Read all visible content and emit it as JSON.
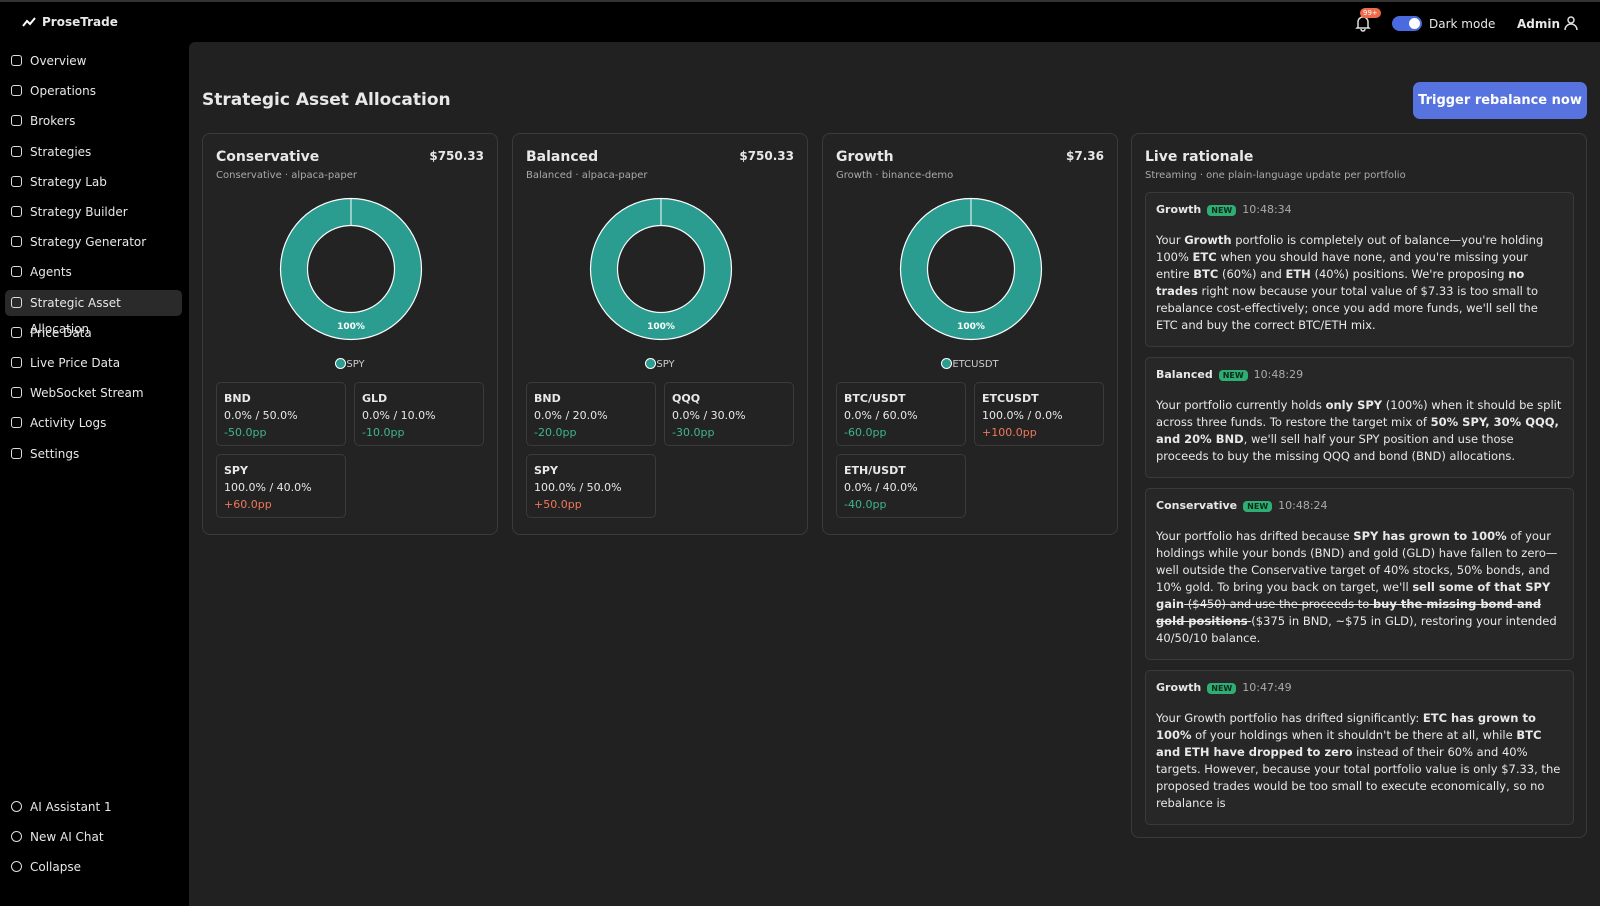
{
  "header": {
    "brand": "ProseTrade",
    "notification_count": "99+",
    "theme_toggle": "Dark mode",
    "user": "Admin"
  },
  "sidebar": {
    "items": [
      "Overview",
      "Operations",
      "Brokers",
      "Strategies",
      "Strategy Lab",
      "Strategy Builder",
      "Strategy Generator",
      "Agents",
      "Strategic Asset Allocation",
      "Price Data",
      "Live Price Data",
      "WebSocket Stream",
      "Activity Logs",
      "Settings"
    ],
    "footer": [
      "AI Assistant 1",
      "New AI Chat",
      "Collapse"
    ]
  },
  "page": {
    "title": "Strategic Asset Allocation",
    "action": "Trigger rebalance now"
  },
  "portfolios": [
    {
      "name": "Conservative",
      "value": "$750.33",
      "subtitle": "Conservative · alpaca-paper",
      "slices": [
        {
          "name": "SPY",
          "value": 100,
          "label": "100%",
          "color": "#2a9d90"
        }
      ],
      "holdings": [
        {
          "symbol": "BND",
          "weights": "0.0% / 50.0%",
          "drift": "-50.0pp"
        },
        {
          "symbol": "GLD",
          "weights": "0.0% / 10.0%",
          "drift": "-10.0pp"
        },
        {
          "symbol": "SPY",
          "weights": "100.0% / 40.0%",
          "drift": "+60.0pp"
        }
      ]
    },
    {
      "name": "Balanced",
      "value": "$750.33",
      "subtitle": "Balanced · alpaca-paper",
      "slices": [
        {
          "name": "SPY",
          "value": 100,
          "label": "100%",
          "color": "#2a9d90"
        }
      ],
      "holdings": [
        {
          "symbol": "BND",
          "weights": "0.0% / 20.0%",
          "drift": "-20.0pp"
        },
        {
          "symbol": "QQQ",
          "weights": "0.0% / 30.0%",
          "drift": "-30.0pp"
        },
        {
          "symbol": "SPY",
          "weights": "100.0% / 50.0%",
          "drift": "+50.0pp"
        }
      ]
    },
    {
      "name": "Growth",
      "value": "$7.36",
      "subtitle": "Growth · binance-demo",
      "slices": [
        {
          "name": "ETCUSDT",
          "value": 100,
          "label": "100%",
          "color": "#2a9d90"
        }
      ],
      "holdings": [
        {
          "symbol": "BTC/USDT",
          "weights": "0.0% / 60.0%",
          "drift": "-60.0pp"
        },
        {
          "symbol": "ETCUSDT",
          "weights": "100.0% / 0.0%",
          "drift": "+100.0pp"
        },
        {
          "symbol": "ETH/USDT",
          "weights": "0.0% / 40.0%",
          "drift": "-40.0pp"
        }
      ]
    }
  ],
  "rationale": {
    "title": "Live rationale",
    "subtitle": "Streaming · one plain-language update per portfolio",
    "entries": [
      {
        "portfolio": "Growth",
        "badge": "NEW",
        "time": "10:48:34",
        "segments": [
          {
            "text": "Your "
          },
          {
            "text": "Growth",
            "style": "bold"
          },
          {
            "text": " portfolio is completely out of balance—you're holding 100% "
          },
          {
            "text": "ETC",
            "style": "bold"
          },
          {
            "text": " when you should have none, and you're missing your entire "
          },
          {
            "text": "BTC",
            "style": "bold"
          },
          {
            "text": " (60%) and "
          },
          {
            "text": "ETH",
            "style": "bold"
          },
          {
            "text": " (40%) positions. We're proposing "
          },
          {
            "text": "no trades",
            "style": "bold"
          },
          {
            "text": " right now because your total value of $7.33 is too small to rebalance cost-effectively; once you add more funds, we'll sell the ETC and buy the correct BTC/ETH mix."
          }
        ]
      },
      {
        "portfolio": "Balanced",
        "badge": "NEW",
        "time": "10:48:29",
        "segments": [
          {
            "text": "Your portfolio currently holds "
          },
          {
            "text": "only SPY",
            "style": "bold"
          },
          {
            "text": " (100%) when it should be split across three funds. To restore the target mix of "
          },
          {
            "text": "50% SPY, 30% QQQ, and 20% BND",
            "style": "bold"
          },
          {
            "text": ", we'll sell half your SPY position and use those proceeds to buy the missing QQQ and bond (BND) allocations."
          }
        ]
      },
      {
        "portfolio": "Conservative",
        "badge": "NEW",
        "time": "10:48:24",
        "segments": [
          {
            "text": "Your portfolio has drifted because "
          },
          {
            "text": "SPY has grown to 100%",
            "style": "bold"
          },
          {
            "text": " of your holdings while your bonds (BND) and gold (GLD) have fallen to zero—well outside the Conservative target of 40% stocks, 50% bonds, and 10% gold. To bring you back on target, we'll "
          },
          {
            "text": "sell some of that SPY gain",
            "style": "bold"
          },
          {
            "text": " ($450) and use the proceeds to ",
            "style": "strike"
          },
          {
            "text": "buy the missing bond and gold positions",
            "style": "bold-strike"
          },
          {
            "text": " ",
            "style": "strike"
          },
          {
            "text": "($375 in BND, ~$75 in GLD), restoring your intended 40/50/10 balance."
          }
        ]
      },
      {
        "portfolio": "Growth",
        "badge": "NEW",
        "time": "10:47:49",
        "segments": [
          {
            "text": "Your Growth portfolio has drifted significantly: "
          },
          {
            "text": "ETC has grown to 100%",
            "style": "bold"
          },
          {
            "text": " of your holdings when it shouldn't be there at all, while "
          },
          {
            "text": "BTC and ETH have dropped to zero",
            "style": "bold"
          },
          {
            "text": " instead of their 60% and 40% targets. However, because your total portfolio value is only $7.33, the proposed trades would be too small to execute economically, so no rebalance is"
          }
        ]
      }
    ]
  }
}
